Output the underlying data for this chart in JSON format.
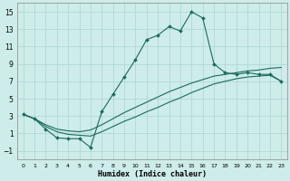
{
  "xlabel": "Humidex (Indice chaleur)",
  "xlim": [
    -0.5,
    23.5
  ],
  "ylim": [
    -2,
    16
  ],
  "background_color": "#cdecea",
  "grid_color": "#b2d8d4",
  "line_color": "#1a6b5a",
  "xticks": [
    0,
    1,
    2,
    3,
    4,
    5,
    6,
    7,
    8,
    9,
    10,
    11,
    12,
    13,
    14,
    15,
    16,
    17,
    18,
    19,
    20,
    21,
    22,
    23
  ],
  "yticks": [
    -1,
    1,
    3,
    5,
    7,
    9,
    11,
    13,
    15
  ],
  "line1_x": [
    0,
    1,
    2,
    3,
    4,
    5,
    6,
    7,
    8,
    9,
    10,
    11,
    12,
    13,
    14,
    15,
    16,
    17,
    18,
    19,
    20,
    21,
    22,
    23
  ],
  "line1_y": [
    3.2,
    2.7,
    1.5,
    0.5,
    0.4,
    0.4,
    -0.6,
    3.5,
    5.5,
    7.5,
    9.5,
    11.8,
    12.3,
    13.3,
    12.8,
    15.0,
    14.3,
    9.0,
    8.0,
    7.8,
    8.0,
    7.8,
    7.8,
    7.0
  ],
  "line2_x": [
    0,
    1,
    2,
    3,
    4,
    5,
    6,
    7,
    8,
    9,
    10,
    11,
    12,
    13,
    14,
    15,
    16,
    17,
    18,
    19,
    20,
    21,
    22,
    23
  ],
  "line2_y": [
    3.2,
    2.7,
    2.0,
    1.5,
    1.3,
    1.2,
    1.4,
    2.0,
    2.7,
    3.4,
    4.0,
    4.6,
    5.2,
    5.8,
    6.3,
    6.8,
    7.2,
    7.6,
    7.8,
    8.0,
    8.2,
    8.3,
    8.5,
    8.6
  ],
  "line3_x": [
    0,
    1,
    2,
    3,
    4,
    5,
    6,
    7,
    8,
    9,
    10,
    11,
    12,
    13,
    14,
    15,
    16,
    17,
    18,
    19,
    20,
    21,
    22,
    23
  ],
  "line3_y": [
    3.2,
    2.7,
    1.8,
    1.2,
    0.9,
    0.8,
    0.7,
    1.2,
    1.8,
    2.4,
    2.9,
    3.5,
    4.0,
    4.6,
    5.1,
    5.7,
    6.2,
    6.7,
    7.0,
    7.3,
    7.5,
    7.6,
    7.7,
    7.0
  ]
}
